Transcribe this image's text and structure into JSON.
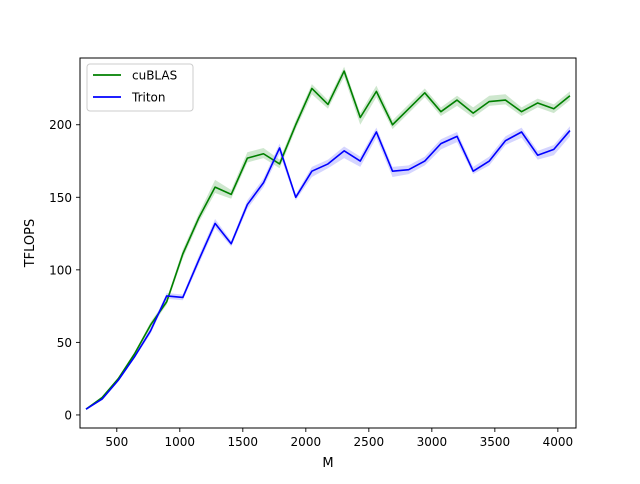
{
  "chart_data": {
    "type": "line",
    "xlabel": "M",
    "ylabel": "TFLOPS",
    "xlim": [
      208,
      4144
    ],
    "ylim": [
      -9,
      246
    ],
    "x_ticks": [
      500,
      1000,
      1500,
      2000,
      2500,
      3000,
      3500,
      4000
    ],
    "y_ticks": [
      0,
      50,
      100,
      150,
      200
    ],
    "grid": false,
    "legend_position": "upper-left",
    "x": [
      256,
      384,
      512,
      640,
      768,
      896,
      1024,
      1152,
      1280,
      1408,
      1536,
      1664,
      1792,
      1920,
      2048,
      2176,
      2304,
      2432,
      2560,
      2688,
      2816,
      2944,
      3072,
      3200,
      3328,
      3456,
      3584,
      3712,
      3840,
      3968,
      4096
    ],
    "series": [
      {
        "name": "cuBLAS",
        "color": "#008000",
        "band_color": "#a6d4a6",
        "values": [
          4,
          12,
          25,
          42,
          62,
          78,
          111,
          136,
          157,
          152,
          177,
          180,
          173,
          200,
          225,
          214,
          237,
          205,
          223,
          200,
          211,
          222,
          209,
          217,
          208,
          216,
          217,
          209,
          215,
          211,
          220
        ],
        "band_low": [
          4,
          11,
          24,
          41,
          60,
          76,
          108,
          133,
          153,
          149,
          174,
          177,
          170,
          197,
          221,
          211,
          233,
          200,
          219,
          197,
          208,
          219,
          206,
          213,
          205,
          213,
          214,
          206,
          212,
          208,
          217
        ],
        "band_high": [
          4,
          13,
          26,
          43,
          64,
          80,
          114,
          139,
          162,
          155,
          181,
          184,
          176,
          203,
          228,
          217,
          240,
          208,
          227,
          203,
          214,
          225,
          212,
          220,
          212,
          220,
          221,
          212,
          218,
          214,
          223
        ]
      },
      {
        "name": "Triton",
        "color": "#0000ff",
        "band_color": "#b3b3ff",
        "values": [
          4,
          11,
          24,
          40,
          58,
          82,
          81,
          107,
          132,
          118,
          145,
          160,
          184,
          150,
          168,
          173,
          182,
          175,
          195,
          168,
          169,
          175,
          187,
          192,
          168,
          175,
          189,
          195,
          179,
          183,
          196
        ],
        "band_low": [
          4,
          10,
          23,
          39,
          56,
          80,
          79,
          104,
          129,
          116,
          142,
          157,
          180,
          148,
          164,
          170,
          177,
          171,
          191,
          164,
          166,
          172,
          183,
          188,
          166,
          172,
          186,
          191,
          176,
          179,
          192
        ],
        "band_high": [
          4,
          12,
          25,
          41,
          60,
          84,
          83,
          110,
          135,
          120,
          148,
          163,
          187,
          152,
          171,
          176,
          185,
          178,
          198,
          171,
          172,
          178,
          190,
          195,
          171,
          178,
          192,
          198,
          182,
          186,
          199
        ]
      }
    ]
  }
}
